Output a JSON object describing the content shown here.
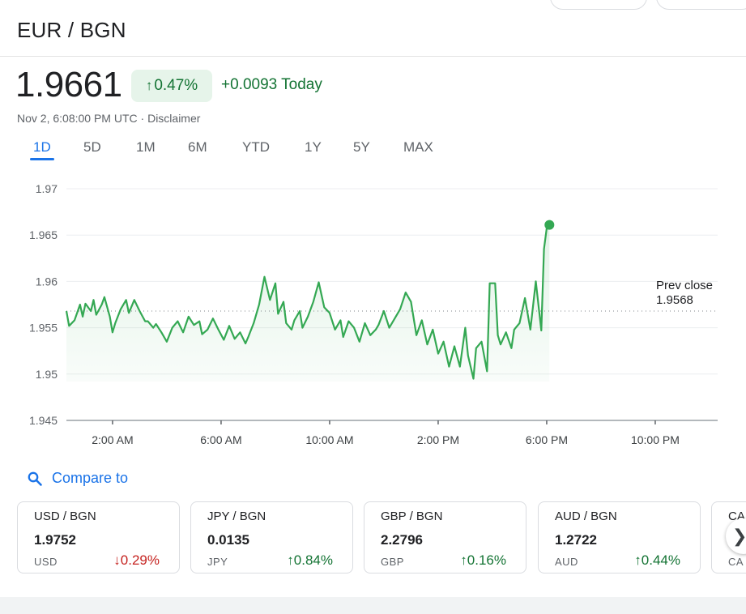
{
  "header": {
    "title": "EUR / BGN"
  },
  "quote": {
    "price": "1.9661",
    "change_pct": "0.47%",
    "change_abs": "+0.0093 Today",
    "timestamp": "Nov 2, 6:08:00 PM UTC",
    "separator": " · ",
    "disclaimer": "Disclaimer",
    "direction": "up"
  },
  "tabs": [
    {
      "label": "1D",
      "active": true
    },
    {
      "label": "5D"
    },
    {
      "label": "1M"
    },
    {
      "label": "6M"
    },
    {
      "label": "YTD"
    },
    {
      "label": "1Y"
    },
    {
      "label": "5Y"
    },
    {
      "label": "MAX"
    }
  ],
  "colors": {
    "up": "#137333",
    "down": "#c5221f",
    "line": "#34a853",
    "accent": "#1a73e8"
  },
  "chart_data": {
    "type": "line",
    "title": "",
    "x_unit": "hours since midnight UTC",
    "xlim": [
      0.3,
      24.3
    ],
    "ylim": [
      1.945,
      1.97
    ],
    "yticks": [
      "1.97",
      "1.965",
      "1.96",
      "1.955",
      "1.95",
      "1.945"
    ],
    "ytick_values": [
      1.97,
      1.965,
      1.96,
      1.955,
      1.95,
      1.945
    ],
    "xticks": [
      "2:00 AM",
      "6:00 AM",
      "10:00 AM",
      "2:00 PM",
      "6:00 PM",
      "10:00 PM"
    ],
    "xtick_values": [
      2,
      6,
      10,
      14,
      18,
      22
    ],
    "prev_close_label": "Prev close",
    "prev_close_value": "1.9568",
    "prev_close": 1.9568,
    "grid": true,
    "series": [
      {
        "x": [
          0.3,
          0.4,
          0.6,
          0.8,
          0.9,
          1.0,
          1.2,
          1.3,
          1.4,
          1.6,
          1.7,
          1.9,
          2.0,
          2.1,
          2.3,
          2.5,
          2.6,
          2.8,
          3.0,
          3.2,
          3.3,
          3.5,
          3.6,
          3.8,
          4.0,
          4.2,
          4.4,
          4.6,
          4.8,
          5.0,
          5.2,
          5.3,
          5.5,
          5.7,
          5.9,
          6.1,
          6.3,
          6.5,
          6.7,
          6.9,
          7.0,
          7.2,
          7.4,
          7.6,
          7.8,
          8.0,
          8.1,
          8.3,
          8.4,
          8.6,
          8.7,
          8.9,
          9.0,
          9.2,
          9.4,
          9.6,
          9.8,
          10.0,
          10.2,
          10.4,
          10.5,
          10.7,
          10.9,
          11.1,
          11.3,
          11.5,
          11.7,
          11.8,
          12.0,
          12.2,
          12.4,
          12.6,
          12.8,
          13.0,
          13.2,
          13.4,
          13.6,
          13.8,
          14.0,
          14.2,
          14.4,
          14.6,
          14.8,
          15.0,
          15.1,
          15.3,
          15.4,
          15.6,
          15.8,
          15.9,
          16.1,
          16.2,
          16.3,
          16.5,
          16.7,
          16.8,
          17.0,
          17.2,
          17.4,
          17.6,
          17.8,
          17.9,
          18.0,
          18.1
        ],
        "y": [
          1.9568,
          1.9552,
          1.9558,
          1.9575,
          1.9562,
          1.9576,
          1.9568,
          1.958,
          1.9564,
          1.9575,
          1.9583,
          1.9562,
          1.9545,
          1.9555,
          1.957,
          1.958,
          1.9566,
          1.958,
          1.9568,
          1.9557,
          1.9557,
          1.955,
          1.9554,
          1.9545,
          1.9535,
          1.955,
          1.9557,
          1.9545,
          1.9562,
          1.9553,
          1.9557,
          1.9543,
          1.9548,
          1.956,
          1.9548,
          1.9537,
          1.9552,
          1.9538,
          1.9545,
          1.9533,
          1.954,
          1.9555,
          1.9575,
          1.9605,
          1.958,
          1.9598,
          1.9565,
          1.9578,
          1.9555,
          1.9548,
          1.9558,
          1.9568,
          1.955,
          1.9562,
          1.9578,
          1.9599,
          1.9572,
          1.9566,
          1.9548,
          1.9558,
          1.954,
          1.9557,
          1.955,
          1.9535,
          1.9555,
          1.9542,
          1.9548,
          1.9553,
          1.9568,
          1.955,
          1.956,
          1.957,
          1.9588,
          1.9578,
          1.9542,
          1.9558,
          1.9532,
          1.9548,
          1.9522,
          1.9535,
          1.9508,
          1.953,
          1.9508,
          1.955,
          1.952,
          1.9495,
          1.9528,
          1.9535,
          1.9503,
          1.9598,
          1.9598,
          1.9542,
          1.9532,
          1.9545,
          1.9528,
          1.9548,
          1.9555,
          1.9582,
          1.9548,
          1.96,
          1.9547,
          1.9635,
          1.9657,
          1.9661
        ]
      }
    ]
  },
  "compare": {
    "label": "Compare to"
  },
  "cards": [
    {
      "pair": "USD / BGN",
      "price": "1.9752",
      "currency": "USD",
      "change": "0.29%",
      "direction": "down"
    },
    {
      "pair": "JPY / BGN",
      "price": "0.0135",
      "currency": "JPY",
      "change": "0.84%",
      "direction": "up"
    },
    {
      "pair": "GBP / BGN",
      "price": "2.2796",
      "currency": "GBP",
      "change": "0.16%",
      "direction": "up"
    },
    {
      "pair": "AUD / BGN",
      "price": "1.2722",
      "currency": "AUD",
      "change": "0.44%",
      "direction": "up"
    },
    {
      "pair": "CA",
      "currency": "CA"
    }
  ],
  "icons": {
    "compare": "search-icon",
    "next": "chevron-right-icon",
    "up": "arrow-up-icon",
    "down": "arrow-down-icon"
  }
}
